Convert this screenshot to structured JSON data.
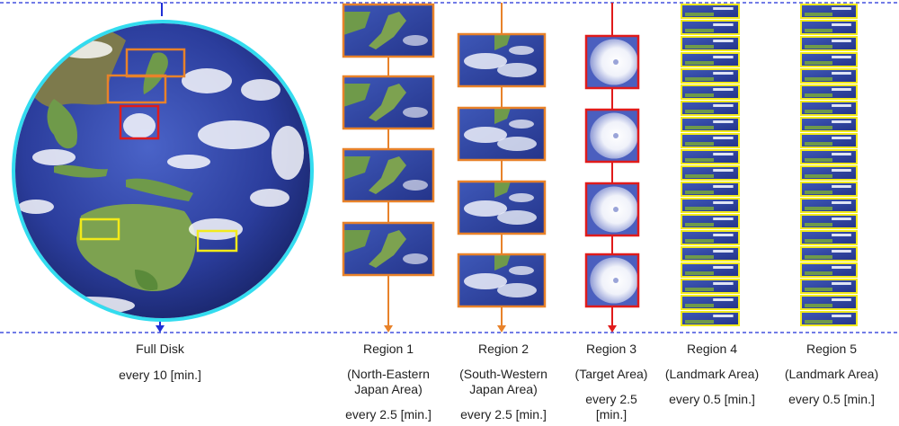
{
  "colors": {
    "timeline": "#1f2fd6",
    "disk_ring": "#33dcef",
    "region1": "#e8822a",
    "region2": "#e8822a",
    "region3": "#e01b1b",
    "landmark": "#f2ea1a",
    "ocean": "#2b3d9c",
    "land": "#6f9a4a"
  },
  "full_disk": {
    "name": "Full Disk",
    "interval": "every 10 [min.]"
  },
  "regions": [
    {
      "name": "Region 1",
      "area_lines": [
        "(North-Eastern",
        "Japan Area)"
      ],
      "interval_lines": [
        "every 2.5 [min.]"
      ],
      "frames": 4
    },
    {
      "name": "Region 2",
      "area_lines": [
        "(South-Western",
        "Japan Area)"
      ],
      "interval_lines": [
        "every 2.5 [min.]"
      ],
      "frames": 4
    },
    {
      "name": "Region 3",
      "area_lines": [
        "(Target Area)"
      ],
      "interval_lines": [
        "every 2.5",
        "[min.]"
      ],
      "frames": 4
    },
    {
      "name": "Region 4",
      "area_lines": [
        "(Landmark Area)"
      ],
      "interval_lines": [
        "every 0.5 [min.]"
      ],
      "frames": 20
    },
    {
      "name": "Region 5",
      "area_lines": [
        "(Landmark Area)"
      ],
      "interval_lines": [
        "every 0.5 [min.]"
      ],
      "frames": 20
    }
  ]
}
